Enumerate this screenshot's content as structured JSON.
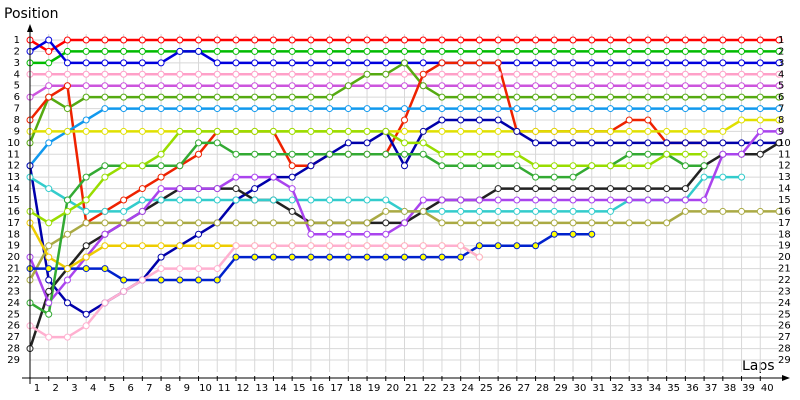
{
  "chart_data": {
    "type": "line",
    "y_label": "Position",
    "x_label": "Laps",
    "x": [
      1,
      2,
      3,
      4,
      5,
      6,
      7,
      8,
      9,
      10,
      11,
      12,
      13,
      14,
      15,
      16,
      17,
      18,
      19,
      20,
      21,
      22,
      23,
      24,
      25,
      26,
      27,
      28,
      29,
      30,
      31,
      32,
      33,
      34,
      35,
      36,
      37,
      38,
      39,
      40,
      41
    ],
    "xlim": [
      1,
      41
    ],
    "xticks": [
      1,
      2,
      3,
      4,
      5,
      6,
      7,
      8,
      9,
      10,
      11,
      12,
      13,
      14,
      15,
      16,
      17,
      18,
      19,
      20,
      21,
      22,
      23,
      24,
      25,
      26,
      27,
      28,
      29,
      30,
      31,
      32,
      33,
      34,
      35,
      36,
      37,
      38,
      39,
      40
    ],
    "ylim": [
      29,
      1
    ],
    "yticks": [
      1,
      2,
      3,
      4,
      5,
      6,
      7,
      8,
      9,
      10,
      11,
      12,
      13,
      14,
      15,
      16,
      17,
      18,
      19,
      20,
      21,
      22,
      23,
      24,
      25,
      26,
      27,
      28,
      29
    ],
    "grid": true,
    "series": [
      {
        "color": "#ff0000",
        "values": [
          1,
          2,
          1,
          1,
          1,
          1,
          1,
          1,
          1,
          1,
          1,
          1,
          1,
          1,
          1,
          1,
          1,
          1,
          1,
          1,
          1,
          1,
          1,
          1,
          1,
          1,
          1,
          1,
          1,
          1,
          1,
          1,
          1,
          1,
          1,
          1,
          1,
          1,
          1,
          1,
          1
        ]
      },
      {
        "color": "#00bb00",
        "values": [
          3,
          3,
          2,
          2,
          2,
          2,
          2,
          2,
          2,
          2,
          2,
          2,
          2,
          2,
          2,
          2,
          2,
          2,
          2,
          2,
          2,
          2,
          2,
          2,
          2,
          2,
          2,
          2,
          2,
          2,
          2,
          2,
          2,
          2,
          2,
          2,
          2,
          2,
          2,
          2,
          2
        ]
      },
      {
        "color": "#0000dd",
        "values": [
          2,
          1,
          3,
          3,
          3,
          3,
          3,
          3,
          2,
          2,
          3,
          3,
          3,
          3,
          3,
          3,
          3,
          3,
          3,
          3,
          3,
          3,
          3,
          3,
          3,
          3,
          3,
          3,
          3,
          3,
          3,
          3,
          3,
          3,
          3,
          3,
          3,
          3,
          3,
          3,
          3
        ]
      },
      {
        "color": "#cc55dd",
        "values": [
          6,
          5,
          5,
          5,
          5,
          5,
          5,
          5,
          5,
          5,
          5,
          5,
          5,
          5,
          5,
          5,
          5,
          5,
          5,
          5,
          5,
          5,
          5,
          5,
          5,
          5,
          5,
          5,
          5,
          5,
          5,
          5,
          5,
          5,
          5,
          5,
          5,
          5,
          5,
          5,
          5
        ]
      },
      {
        "color": "#ffa0c8",
        "values": [
          4,
          4,
          4,
          4,
          4,
          4,
          4,
          4,
          4,
          4,
          4,
          4,
          4,
          4,
          4,
          4,
          4,
          4,
          4,
          4,
          4,
          4,
          4,
          4,
          4,
          4,
          4,
          4,
          4,
          4,
          4,
          4,
          4,
          4,
          4,
          4,
          4,
          4,
          4,
          4,
          4
        ]
      },
      {
        "color": "#55aa11",
        "values": [
          10,
          6,
          7,
          6,
          6,
          6,
          6,
          6,
          6,
          6,
          6,
          6,
          6,
          6,
          6,
          6,
          6,
          5,
          4,
          4,
          3,
          5,
          6,
          6,
          6,
          6,
          6,
          6,
          6,
          6,
          6,
          6,
          6,
          6,
          6,
          6,
          6,
          6,
          6,
          6,
          6
        ]
      },
      {
        "color": "#ee2200",
        "values": [
          8,
          6,
          5,
          17,
          16,
          15,
          14,
          13,
          12,
          11,
          9,
          9,
          9,
          9,
          12,
          12,
          11,
          11,
          11,
          11,
          8,
          4,
          3,
          3,
          3,
          3,
          9,
          9,
          9,
          9,
          9,
          9,
          8,
          8,
          10,
          10,
          10,
          null,
          null,
          null,
          null
        ]
      },
      {
        "color": "#1199ee",
        "values": [
          12,
          10,
          9,
          8,
          7,
          7,
          7,
          7,
          7,
          7,
          7,
          7,
          7,
          7,
          7,
          7,
          7,
          7,
          7,
          7,
          7,
          7,
          7,
          7,
          7,
          7,
          7,
          7,
          7,
          7,
          7,
          7,
          7,
          7,
          7,
          7,
          7,
          7,
          7,
          7,
          7
        ]
      },
      {
        "color": "#e0e000",
        "values": [
          9,
          9,
          9,
          9,
          9,
          9,
          9,
          9,
          9,
          9,
          9,
          9,
          9,
          9,
          9,
          9,
          9,
          9,
          9,
          9,
          9,
          9,
          9,
          9,
          9,
          9,
          9,
          9,
          9,
          9,
          9,
          9,
          9,
          9,
          9,
          9,
          9,
          9,
          8,
          8,
          8
        ]
      },
      {
        "color": "#0000aa",
        "values": [
          12,
          22,
          24,
          25,
          24,
          23,
          22,
          20,
          19,
          18,
          17,
          15,
          14,
          13,
          13,
          12,
          11,
          10,
          10,
          9,
          12,
          9,
          8,
          8,
          8,
          8,
          9,
          10,
          10,
          10,
          10,
          10,
          10,
          10,
          10,
          10,
          10,
          10,
          10,
          10,
          10
        ]
      },
      {
        "color": "#222222",
        "values": [
          28,
          23,
          21,
          19,
          18,
          17,
          16,
          15,
          14,
          14,
          14,
          14,
          15,
          15,
          16,
          17,
          17,
          17,
          17,
          17,
          17,
          16,
          15,
          15,
          15,
          14,
          14,
          14,
          14,
          14,
          14,
          14,
          14,
          14,
          14,
          14,
          12,
          11,
          11,
          11,
          10
        ]
      },
      {
        "color": "#33cccc",
        "values": [
          13,
          14,
          15,
          16,
          16,
          16,
          15,
          15,
          15,
          15,
          15,
          15,
          15,
          15,
          15,
          15,
          15,
          15,
          15,
          15,
          16,
          16,
          16,
          16,
          16,
          16,
          16,
          16,
          16,
          16,
          16,
          16,
          15,
          15,
          15,
          15,
          13,
          13,
          13,
          null,
          null
        ]
      },
      {
        "color": "#aa44ee",
        "values": [
          20,
          24,
          22,
          20,
          18,
          17,
          16,
          14,
          14,
          14,
          14,
          13,
          13,
          13,
          14,
          18,
          18,
          18,
          18,
          18,
          17,
          15,
          15,
          15,
          15,
          15,
          15,
          15,
          15,
          15,
          15,
          15,
          15,
          15,
          15,
          15,
          15,
          11,
          11,
          9,
          9
        ]
      },
      {
        "color": "#aaaa44",
        "values": [
          22,
          19,
          18,
          17,
          17,
          17,
          17,
          17,
          17,
          17,
          17,
          17,
          17,
          17,
          17,
          17,
          17,
          17,
          17,
          16,
          16,
          16,
          17,
          17,
          17,
          17,
          17,
          17,
          17,
          17,
          17,
          17,
          17,
          17,
          17,
          16,
          16,
          16,
          16,
          16,
          16
        ]
      },
      {
        "color": "#0022cc",
        "marker_fill": "#ffff00",
        "values": [
          21,
          21,
          21,
          21,
          21,
          22,
          22,
          22,
          22,
          22,
          22,
          20,
          20,
          20,
          20,
          20,
          20,
          20,
          20,
          20,
          20,
          20,
          20,
          20,
          19,
          19,
          19,
          19,
          18,
          18,
          18,
          null,
          null,
          null,
          null,
          null,
          null,
          null,
          null,
          null,
          null
        ]
      },
      {
        "color": "#eecc00",
        "values": [
          17,
          20,
          21,
          20,
          19,
          19,
          19,
          19,
          19,
          19,
          19,
          19,
          19,
          19,
          19,
          19,
          19,
          19,
          19,
          19,
          19,
          19,
          19,
          19,
          20,
          null,
          null,
          null,
          null,
          null,
          null,
          null,
          null,
          null,
          null,
          null,
          null,
          null,
          null,
          null,
          null
        ]
      },
      {
        "color": "#ffb0d0",
        "values": [
          26,
          27,
          27,
          26,
          24,
          23,
          22,
          21,
          21,
          21,
          21,
          19,
          19,
          19,
          19,
          19,
          19,
          19,
          19,
          19,
          19,
          19,
          19,
          19,
          20,
          null,
          null,
          null,
          null,
          null,
          null,
          null,
          null,
          null,
          null,
          null,
          null,
          null,
          null,
          null,
          null
        ]
      },
      {
        "color": "#33aa33",
        "values": [
          24,
          25,
          15,
          13,
          12,
          12,
          12,
          12,
          12,
          10,
          10,
          11,
          11,
          11,
          11,
          11,
          11,
          11,
          11,
          11,
          11,
          11,
          12,
          12,
          12,
          12,
          12,
          13,
          13,
          13,
          12,
          12,
          11,
          11,
          11,
          12,
          12,
          null,
          null,
          null,
          null
        ]
      },
      {
        "color": "#99dd00",
        "values": [
          16,
          17,
          16,
          15,
          13,
          12,
          12,
          11,
          9,
          9,
          9,
          9,
          9,
          9,
          9,
          9,
          9,
          9,
          9,
          9,
          10,
          10,
          11,
          11,
          11,
          11,
          11,
          12,
          12,
          12,
          12,
          12,
          12,
          12,
          11,
          11,
          11,
          null,
          null,
          null,
          null
        ]
      }
    ]
  }
}
